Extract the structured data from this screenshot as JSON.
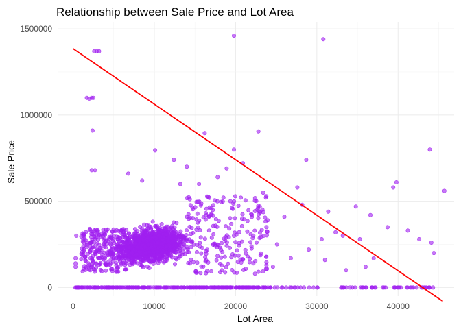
{
  "chart_data": {
    "type": "scatter",
    "title": "Relationship between Sale Price and Lot Area",
    "xlabel": "Lot Area",
    "ylabel": "Sale Price",
    "xlim": [
      -1900,
      46900
    ],
    "ylim": [
      -50000,
      1540000
    ],
    "x_ticks": [
      0,
      10000,
      20000,
      30000,
      40000
    ],
    "x_tick_labels": [
      "0",
      "10000",
      "20000",
      "30000",
      "40000"
    ],
    "y_ticks": [
      0,
      500000,
      1000000,
      1500000
    ],
    "y_tick_labels": [
      "0",
      "500000",
      "1000000",
      "1500000"
    ],
    "grid": true,
    "point_color": "#a020f0",
    "point_opacity": 0.6,
    "line_color": "#ff0000",
    "trend_line": {
      "x": [
        0,
        45500
      ],
      "y": [
        1385000,
        -80000
      ]
    },
    "series": [
      {
        "points": [
          [
            2600,
            1370000
          ],
          [
            2900,
            1370000
          ],
          [
            3200,
            1370000
          ],
          [
            1700,
            1100000
          ],
          [
            2000,
            1095000
          ],
          [
            2300,
            1100000
          ],
          [
            2500,
            1100000
          ],
          [
            2400,
            910000
          ],
          [
            2300,
            680000
          ],
          [
            2700,
            680000
          ],
          [
            19800,
            1460000
          ],
          [
            30800,
            1440000
          ],
          [
            22800,
            905000
          ],
          [
            16200,
            895000
          ],
          [
            19800,
            800000
          ],
          [
            10100,
            795000
          ],
          [
            6800,
            660000
          ],
          [
            8500,
            620000
          ],
          [
            12400,
            740000
          ],
          [
            14000,
            700000
          ],
          [
            17800,
            640000
          ],
          [
            18900,
            690000
          ],
          [
            15500,
            600000
          ],
          [
            13200,
            600000
          ],
          [
            28700,
            740000
          ],
          [
            20900,
            720000
          ],
          [
            23400,
            550000
          ],
          [
            27600,
            580000
          ],
          [
            23800,
            350000
          ],
          [
            26000,
            410000
          ],
          [
            28200,
            480000
          ],
          [
            31400,
            440000
          ],
          [
            33200,
            300000
          ],
          [
            34800,
            470000
          ],
          [
            36600,
            420000
          ],
          [
            38700,
            350000
          ],
          [
            39400,
            580000
          ],
          [
            39800,
            610000
          ],
          [
            43900,
            800000
          ],
          [
            45700,
            560000
          ],
          [
            41200,
            330000
          ],
          [
            42600,
            280000
          ],
          [
            44100,
            260000
          ],
          [
            44400,
            200000
          ],
          [
            36000,
            120000
          ],
          [
            33600,
            100000
          ],
          [
            31000,
            160000
          ],
          [
            29000,
            220000
          ],
          [
            26800,
            170000
          ],
          [
            25100,
            250000
          ],
          [
            24600,
            120000
          ],
          [
            22200,
            140000
          ],
          [
            37000,
            170000
          ],
          [
            35300,
            280000
          ],
          [
            32300,
            320000
          ],
          [
            30600,
            280000
          ],
          [
            300,
            140000
          ],
          [
            300,
            170000
          ],
          [
            300,
            120000
          ],
          [
            400,
            300000
          ],
          [
            43000,
            0
          ],
          [
            44300,
            0
          ],
          [
            39600,
            0
          ],
          [
            35600,
            0
          ],
          [
            33000,
            0
          ]
        ]
      }
    ]
  }
}
